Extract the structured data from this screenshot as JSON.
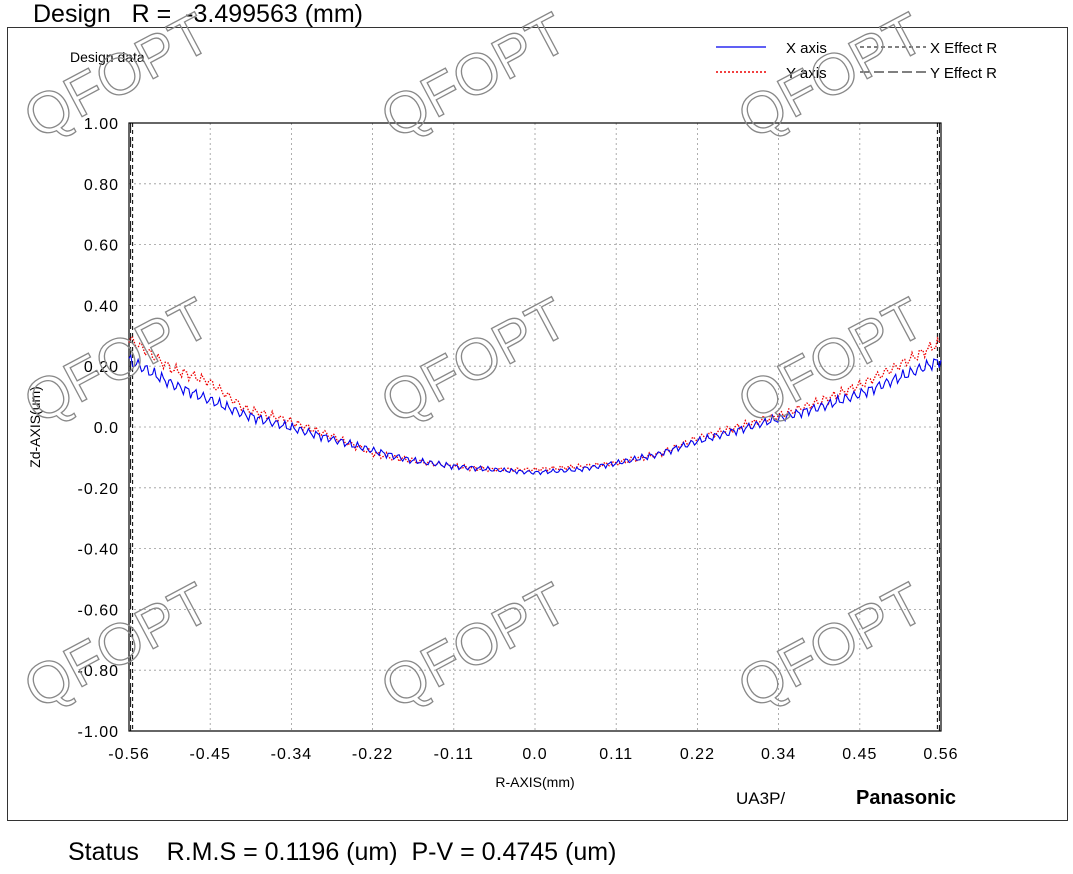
{
  "header": {
    "design_label": "Design",
    "r_label": "R =  -3.499563 (mm)"
  },
  "footer": {
    "status_label": "Status",
    "rms_label": "R.M.S = 0.1196 (um)",
    "pv_label": "P-V = 0.4745 (um)"
  },
  "branding": {
    "model": "UA3P/",
    "maker": "Panasonic",
    "watermark": "QFOPT"
  },
  "chart_data": {
    "type": "line",
    "subtitle": "Design data",
    "xlabel": "R-AXIS(mm)",
    "ylabel": "Zd-AXIS(um)",
    "xlim": [
      -0.56,
      0.56
    ],
    "ylim": [
      -1.0,
      1.0
    ],
    "x_ticks": [
      "-0.56",
      "-0.45",
      "-0.34",
      "-0.22",
      "-0.11",
      "0.0",
      "0.11",
      "0.22",
      "0.34",
      "0.45",
      "0.56"
    ],
    "y_ticks": [
      "1.00",
      "0.80",
      "0.60",
      "0.40",
      "0.20",
      "0.0",
      "-0.20",
      "-0.40",
      "-0.60",
      "-0.80",
      "-1.00"
    ],
    "grid": true,
    "legend_position": "top-right",
    "effect_r_bounds": [
      -0.555,
      0.555
    ],
    "series": [
      {
        "name": "X axis",
        "color": "#0000ee",
        "style": "solid",
        "x": [
          -0.56,
          -0.5,
          -0.45,
          -0.4,
          -0.34,
          -0.28,
          -0.22,
          -0.17,
          -0.11,
          -0.06,
          0.0,
          0.06,
          0.11,
          0.17,
          0.22,
          0.28,
          0.34,
          0.4,
          0.45,
          0.5,
          0.56
        ],
        "y": [
          0.22,
          0.14,
          0.09,
          0.04,
          0.0,
          -0.04,
          -0.08,
          -0.11,
          -0.13,
          -0.14,
          -0.15,
          -0.14,
          -0.12,
          -0.09,
          -0.05,
          -0.01,
          0.03,
          0.07,
          0.11,
          0.16,
          0.22
        ]
      },
      {
        "name": "Y axis",
        "color": "#ee0000",
        "style": "dotted",
        "x": [
          -0.56,
          -0.5,
          -0.45,
          -0.4,
          -0.34,
          -0.28,
          -0.22,
          -0.17,
          -0.11,
          -0.06,
          0.0,
          0.06,
          0.11,
          0.17,
          0.22,
          0.28,
          0.34,
          0.4,
          0.45,
          0.5,
          0.56
        ],
        "y": [
          0.29,
          0.19,
          0.15,
          0.06,
          0.02,
          -0.03,
          -0.09,
          -0.11,
          -0.13,
          -0.14,
          -0.14,
          -0.13,
          -0.12,
          -0.09,
          -0.04,
          0.0,
          0.04,
          0.09,
          0.14,
          0.2,
          0.28
        ]
      },
      {
        "name": "X Effect R",
        "color": "#000000",
        "style": "short-dash"
      },
      {
        "name": "Y Effect R",
        "color": "#000000",
        "style": "long-dash"
      }
    ]
  }
}
